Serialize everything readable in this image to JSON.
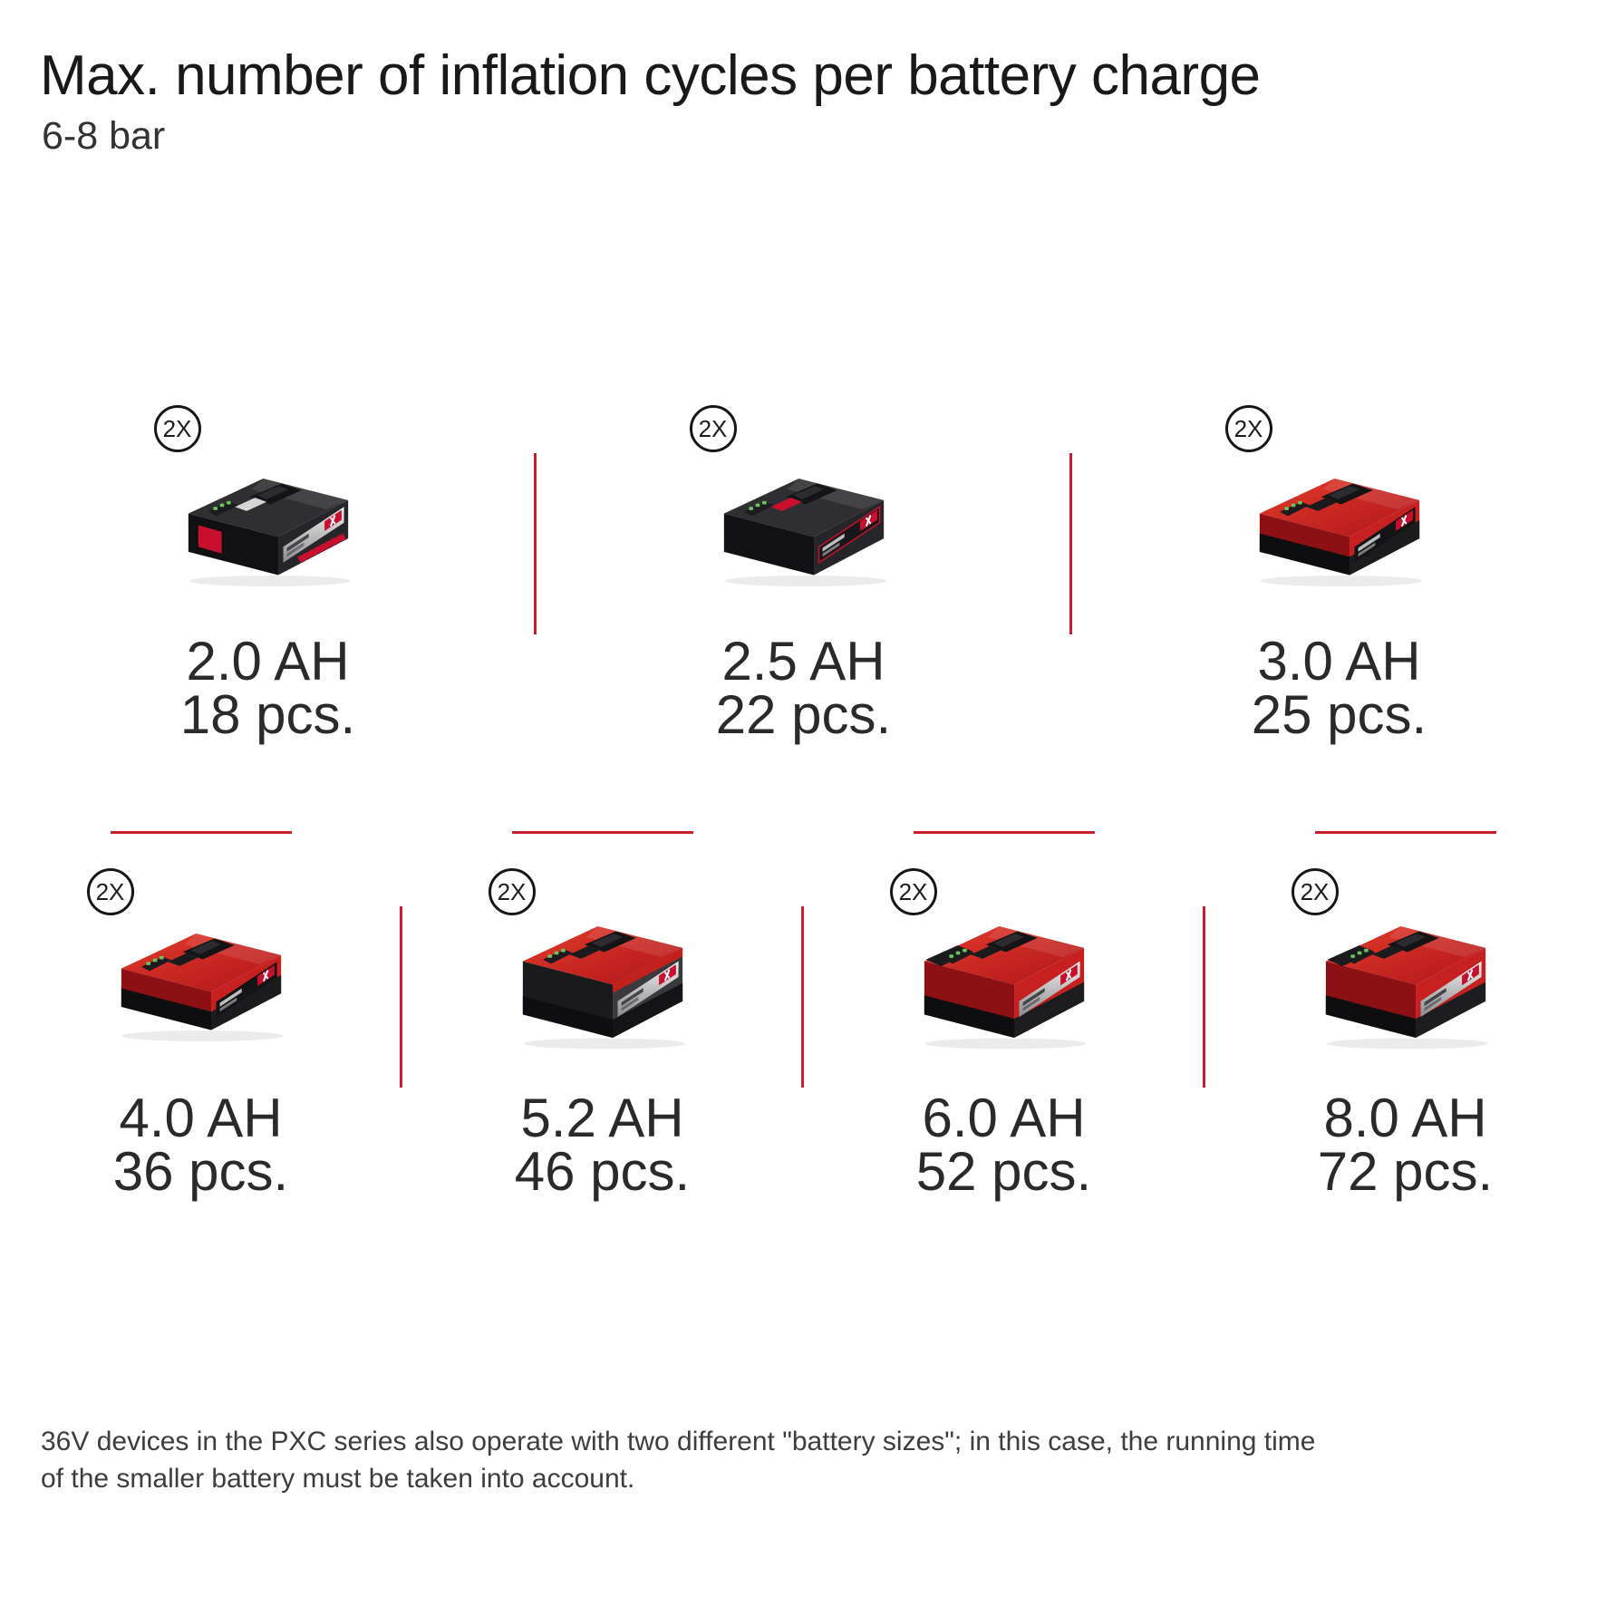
{
  "header": {
    "title": "Max. number of inflation cycles per battery charge",
    "subtitle": "6-8 bar"
  },
  "badge_label": "2X",
  "batteries": [
    {
      "capacity": "2.0 AH",
      "count": "18 pcs.",
      "variant": "black-small"
    },
    {
      "capacity": "2.5 AH",
      "count": "22 pcs.",
      "variant": "black-clip"
    },
    {
      "capacity": "3.0 AH",
      "count": "25 pcs.",
      "variant": "red-flat"
    },
    {
      "capacity": "4.0 AH",
      "count": "36 pcs.",
      "variant": "red-flat"
    },
    {
      "capacity": "5.2 AH",
      "count": "46 pcs.",
      "variant": "dark-tall"
    },
    {
      "capacity": "6.0 AH",
      "count": "52 pcs.",
      "variant": "red-tall"
    },
    {
      "capacity": "8.0 AH",
      "count": "72 pcs.",
      "variant": "red-tall"
    }
  ],
  "footer": {
    "lines": [
      "36V devices in the PXC series also operate with two different \"battery sizes\"; in this case, the running time",
      "of the smaller battery must be taken into account."
    ]
  },
  "colors": {
    "accent_red": "#c81e2e",
    "battery_red": "#c62120",
    "battery_black": "#26262a",
    "text_dark": "#191919",
    "text_body": "#3d3d3d"
  }
}
